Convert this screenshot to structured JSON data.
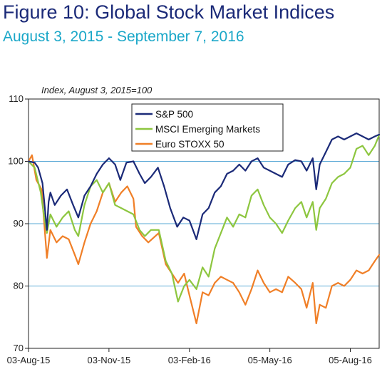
{
  "figure": {
    "title": "Figure 10:  Global Stock Market Indices",
    "subtitle": "August 3, 2015 - September 7, 2016",
    "title_color": "#1b2a78",
    "subtitle_color": "#1aa7c8"
  },
  "chart_data": {
    "type": "line",
    "ylabel": "Index, August 3, 2015=100",
    "xlabel": "",
    "ylim": [
      70,
      110
    ],
    "yticks": [
      70,
      80,
      90,
      100,
      110
    ],
    "xlim": [
      "2015-08-03",
      "2016-09-07"
    ],
    "xticks": [
      "03-Aug-15",
      "03-Nov-15",
      "03-Feb-16",
      "05-May-16",
      "05-Aug-16"
    ],
    "xtick_dates": [
      "2015-08-03",
      "2015-11-03",
      "2016-02-03",
      "2016-05-05",
      "2016-08-05"
    ],
    "grid": "horizontal",
    "legend_position": "top",
    "series": [
      {
        "name": "S&P 500",
        "color": "#1b2a78",
        "points": [
          [
            "2015-08-03",
            100.0
          ],
          [
            "2015-08-10",
            99.8
          ],
          [
            "2015-08-14",
            99.0
          ],
          [
            "2015-08-19",
            96.5
          ],
          [
            "2015-08-21",
            93.5
          ],
          [
            "2015-08-24",
            89.0
          ],
          [
            "2015-08-26",
            93.5
          ],
          [
            "2015-08-28",
            95.0
          ],
          [
            "2015-09-02",
            93.0
          ],
          [
            "2015-09-09",
            94.5
          ],
          [
            "2015-09-16",
            95.5
          ],
          [
            "2015-09-23",
            93.0
          ],
          [
            "2015-09-29",
            91.0
          ],
          [
            "2015-10-06",
            94.5
          ],
          [
            "2015-10-13",
            96.0
          ],
          [
            "2015-10-20",
            98.0
          ],
          [
            "2015-10-27",
            99.5
          ],
          [
            "2015-11-03",
            100.5
          ],
          [
            "2015-11-10",
            99.5
          ],
          [
            "2015-11-16",
            97.0
          ],
          [
            "2015-11-23",
            99.8
          ],
          [
            "2015-12-01",
            100.0
          ],
          [
            "2015-12-08",
            98.0
          ],
          [
            "2015-12-14",
            96.5
          ],
          [
            "2015-12-21",
            97.5
          ],
          [
            "2015-12-29",
            99.0
          ],
          [
            "2016-01-05",
            96.0
          ],
          [
            "2016-01-12",
            92.5
          ],
          [
            "2016-01-20",
            89.5
          ],
          [
            "2016-01-27",
            91.0
          ],
          [
            "2016-02-03",
            90.5
          ],
          [
            "2016-02-11",
            87.5
          ],
          [
            "2016-02-18",
            91.5
          ],
          [
            "2016-02-25",
            92.5
          ],
          [
            "2016-03-03",
            95.0
          ],
          [
            "2016-03-10",
            96.0
          ],
          [
            "2016-03-17",
            98.0
          ],
          [
            "2016-03-24",
            98.5
          ],
          [
            "2016-03-31",
            99.5
          ],
          [
            "2016-04-07",
            98.5
          ],
          [
            "2016-04-14",
            100.0
          ],
          [
            "2016-04-21",
            100.5
          ],
          [
            "2016-04-28",
            99.0
          ],
          [
            "2016-05-05",
            98.5
          ],
          [
            "2016-05-12",
            98.0
          ],
          [
            "2016-05-19",
            97.5
          ],
          [
            "2016-05-26",
            99.5
          ],
          [
            "2016-06-03",
            100.2
          ],
          [
            "2016-06-10",
            100.0
          ],
          [
            "2016-06-16",
            98.5
          ],
          [
            "2016-06-23",
            100.5
          ],
          [
            "2016-06-27",
            95.5
          ],
          [
            "2016-07-01",
            99.5
          ],
          [
            "2016-07-08",
            101.5
          ],
          [
            "2016-07-15",
            103.5
          ],
          [
            "2016-07-22",
            104.0
          ],
          [
            "2016-07-29",
            103.5
          ],
          [
            "2016-08-05",
            104.0
          ],
          [
            "2016-08-12",
            104.5
          ],
          [
            "2016-08-19",
            104.0
          ],
          [
            "2016-08-26",
            103.5
          ],
          [
            "2016-09-02",
            104.0
          ],
          [
            "2016-09-07",
            104.3
          ]
        ]
      },
      {
        "name": "MSCI Emerging Markets",
        "color": "#8dc63f",
        "points": [
          [
            "2015-08-03",
            100.0
          ],
          [
            "2015-08-10",
            99.0
          ],
          [
            "2015-08-17",
            95.0
          ],
          [
            "2015-08-21",
            91.0
          ],
          [
            "2015-08-24",
            88.5
          ],
          [
            "2015-08-28",
            91.5
          ],
          [
            "2015-09-04",
            89.5
          ],
          [
            "2015-09-11",
            91.0
          ],
          [
            "2015-09-18",
            92.0
          ],
          [
            "2015-09-25",
            89.0
          ],
          [
            "2015-09-29",
            88.0
          ],
          [
            "2015-10-06",
            93.0
          ],
          [
            "2015-10-13",
            96.0
          ],
          [
            "2015-10-20",
            97.0
          ],
          [
            "2015-10-27",
            95.0
          ],
          [
            "2015-11-03",
            96.5
          ],
          [
            "2015-11-10",
            93.0
          ],
          [
            "2015-11-17",
            92.5
          ],
          [
            "2015-11-24",
            92.0
          ],
          [
            "2015-12-01",
            91.5
          ],
          [
            "2015-12-08",
            89.0
          ],
          [
            "2015-12-14",
            88.0
          ],
          [
            "2015-12-21",
            89.0
          ],
          [
            "2015-12-30",
            89.0
          ],
          [
            "2016-01-07",
            84.0
          ],
          [
            "2016-01-14",
            82.0
          ],
          [
            "2016-01-21",
            77.5
          ],
          [
            "2016-01-28",
            80.0
          ],
          [
            "2016-02-03",
            81.0
          ],
          [
            "2016-02-11",
            79.5
          ],
          [
            "2016-02-18",
            83.0
          ],
          [
            "2016-02-25",
            81.5
          ],
          [
            "2016-03-03",
            86.0
          ],
          [
            "2016-03-10",
            88.5
          ],
          [
            "2016-03-17",
            91.0
          ],
          [
            "2016-03-24",
            89.5
          ],
          [
            "2016-03-31",
            91.5
          ],
          [
            "2016-04-07",
            91.0
          ],
          [
            "2016-04-14",
            94.5
          ],
          [
            "2016-04-21",
            95.5
          ],
          [
            "2016-04-28",
            93.0
          ],
          [
            "2016-05-05",
            91.0
          ],
          [
            "2016-05-12",
            90.0
          ],
          [
            "2016-05-19",
            88.5
          ],
          [
            "2016-05-26",
            90.5
          ],
          [
            "2016-06-03",
            92.5
          ],
          [
            "2016-06-10",
            93.5
          ],
          [
            "2016-06-16",
            91.0
          ],
          [
            "2016-06-23",
            93.5
          ],
          [
            "2016-06-27",
            89.0
          ],
          [
            "2016-07-01",
            92.5
          ],
          [
            "2016-07-08",
            94.0
          ],
          [
            "2016-07-15",
            96.5
          ],
          [
            "2016-07-22",
            97.5
          ],
          [
            "2016-07-29",
            98.0
          ],
          [
            "2016-08-05",
            99.0
          ],
          [
            "2016-08-12",
            102.0
          ],
          [
            "2016-08-19",
            102.5
          ],
          [
            "2016-08-26",
            101.0
          ],
          [
            "2016-09-02",
            102.5
          ],
          [
            "2016-09-07",
            104.2
          ]
        ]
      },
      {
        "name": "Euro STOXX 50",
        "color": "#f07f27",
        "points": [
          [
            "2015-08-03",
            100.0
          ],
          [
            "2015-08-07",
            101.0
          ],
          [
            "2015-08-12",
            97.0
          ],
          [
            "2015-08-18",
            95.5
          ],
          [
            "2015-08-21",
            90.0
          ],
          [
            "2015-08-24",
            84.5
          ],
          [
            "2015-08-28",
            89.0
          ],
          [
            "2015-09-04",
            87.0
          ],
          [
            "2015-09-11",
            88.0
          ],
          [
            "2015-09-18",
            87.5
          ],
          [
            "2015-09-25",
            85.0
          ],
          [
            "2015-09-29",
            83.5
          ],
          [
            "2015-10-06",
            87.0
          ],
          [
            "2015-10-13",
            90.0
          ],
          [
            "2015-10-20",
            92.0
          ],
          [
            "2015-10-27",
            95.0
          ],
          [
            "2015-11-03",
            96.5
          ],
          [
            "2015-11-10",
            93.5
          ],
          [
            "2015-11-17",
            95.0
          ],
          [
            "2015-11-24",
            96.0
          ],
          [
            "2015-12-01",
            94.0
          ],
          [
            "2015-12-04",
            89.5
          ],
          [
            "2015-12-11",
            88.0
          ],
          [
            "2015-12-18",
            87.0
          ],
          [
            "2015-12-30",
            88.5
          ],
          [
            "2016-01-07",
            83.5
          ],
          [
            "2016-01-14",
            82.0
          ],
          [
            "2016-01-21",
            80.5
          ],
          [
            "2016-01-28",
            82.0
          ],
          [
            "2016-02-03",
            78.5
          ],
          [
            "2016-02-11",
            74.0
          ],
          [
            "2016-02-18",
            79.0
          ],
          [
            "2016-02-25",
            78.5
          ],
          [
            "2016-03-03",
            80.5
          ],
          [
            "2016-03-10",
            81.5
          ],
          [
            "2016-03-17",
            81.0
          ],
          [
            "2016-03-24",
            80.5
          ],
          [
            "2016-03-31",
            79.0
          ],
          [
            "2016-04-07",
            77.0
          ],
          [
            "2016-04-14",
            79.5
          ],
          [
            "2016-04-21",
            82.5
          ],
          [
            "2016-04-28",
            80.5
          ],
          [
            "2016-05-05",
            79.0
          ],
          [
            "2016-05-12",
            79.5
          ],
          [
            "2016-05-19",
            79.0
          ],
          [
            "2016-05-26",
            81.5
          ],
          [
            "2016-06-03",
            80.5
          ],
          [
            "2016-06-10",
            79.5
          ],
          [
            "2016-06-16",
            76.5
          ],
          [
            "2016-06-23",
            80.5
          ],
          [
            "2016-06-27",
            74.0
          ],
          [
            "2016-07-01",
            77.0
          ],
          [
            "2016-07-08",
            76.5
          ],
          [
            "2016-07-15",
            80.0
          ],
          [
            "2016-07-22",
            80.5
          ],
          [
            "2016-07-29",
            80.0
          ],
          [
            "2016-08-05",
            81.0
          ],
          [
            "2016-08-12",
            82.5
          ],
          [
            "2016-08-19",
            82.0
          ],
          [
            "2016-08-26",
            82.5
          ],
          [
            "2016-09-02",
            84.0
          ],
          [
            "2016-09-07",
            85.0
          ]
        ]
      }
    ]
  }
}
